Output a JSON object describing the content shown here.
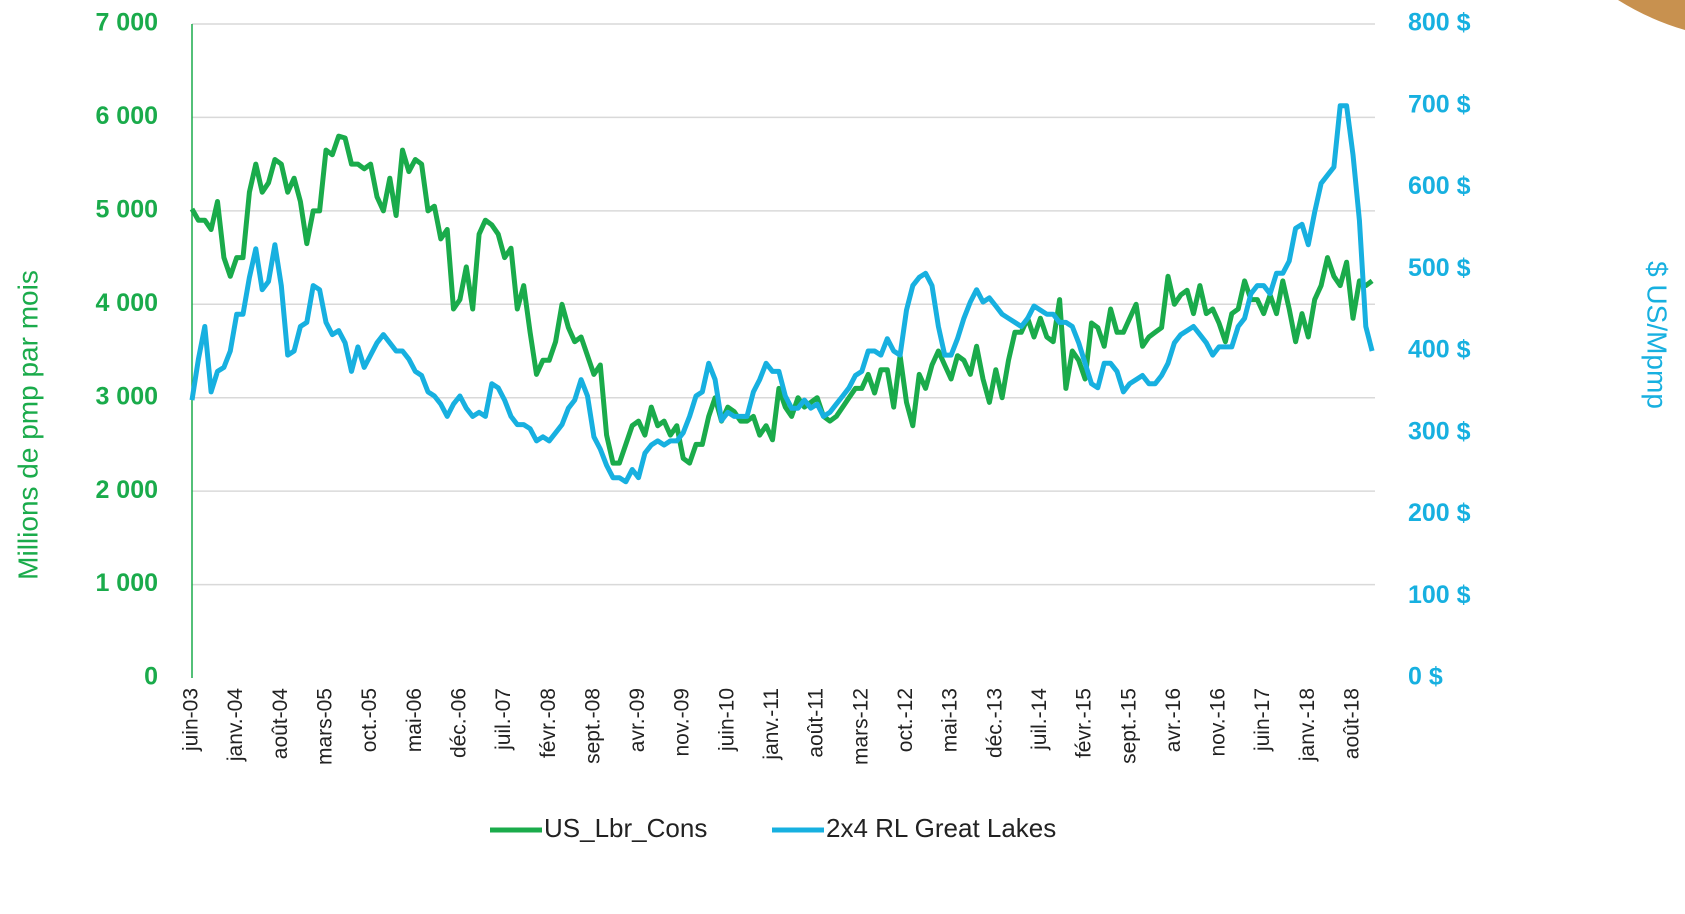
{
  "chart_data": {
    "type": "line",
    "y_label": "Millions de pmp par mois",
    "y2_label": "$ US/Mpmp",
    "categories": [
      "juin-03",
      null,
      null,
      null,
      null,
      null,
      null,
      "janv.-04",
      null,
      null,
      null,
      null,
      null,
      null,
      "août-04",
      null,
      null,
      null,
      null,
      null,
      null,
      "mars-05",
      null,
      null,
      null,
      null,
      null,
      null,
      "oct.-05",
      null,
      null,
      null,
      null,
      null,
      null,
      "mai-06",
      null,
      null,
      null,
      null,
      null,
      null,
      "déc.-06",
      null,
      null,
      null,
      null,
      null,
      null,
      "juil.-07",
      null,
      null,
      null,
      null,
      null,
      null,
      "févr.-08",
      null,
      null,
      null,
      null,
      null,
      null,
      "sept.-08",
      null,
      null,
      null,
      null,
      null,
      null,
      "avr.-09",
      null,
      null,
      null,
      null,
      null,
      null,
      "nov.-09",
      null,
      null,
      null,
      null,
      null,
      null,
      "juin-10",
      null,
      null,
      null,
      null,
      null,
      null,
      "janv.-11",
      null,
      null,
      null,
      null,
      null,
      null,
      "août-11",
      null,
      null,
      null,
      null,
      null,
      null,
      "mars-12",
      null,
      null,
      null,
      null,
      null,
      null,
      "oct.-12",
      null,
      null,
      null,
      null,
      null,
      null,
      "mai-13",
      null,
      null,
      null,
      null,
      null,
      null,
      "déc.-13",
      null,
      null,
      null,
      null,
      null,
      null,
      "juil.-14",
      null,
      null,
      null,
      null,
      null,
      null,
      "févr.-15",
      null,
      null,
      null,
      null,
      null,
      null,
      "sept.-15",
      null,
      null,
      null,
      null,
      null,
      null,
      "avr.-16",
      null,
      null,
      null,
      null,
      null,
      null,
      "nov.-16",
      null,
      null,
      null,
      null,
      null,
      null,
      "juin-17",
      null,
      null,
      null,
      null,
      null,
      null,
      "janv.-18",
      null,
      null,
      null,
      null,
      null,
      null,
      "août-18",
      null,
      null,
      null
    ],
    "series": [
      {
        "name": "US_Lbr_Cons",
        "color": "#1aab4b",
        "axis": "y",
        "values": [
          5020,
          4900,
          4900,
          4800,
          5100,
          4500,
          4300,
          4500,
          4500,
          5200,
          5500,
          5200,
          5300,
          5550,
          5500,
          5200,
          5350,
          5100,
          4650,
          5000,
          5000,
          5650,
          5600,
          5800,
          5780,
          5500,
          5500,
          5450,
          5500,
          5150,
          5000,
          5350,
          4950,
          5650,
          5420,
          5550,
          5500,
          5000,
          5050,
          4700,
          4800,
          3950,
          4050,
          4400,
          3950,
          4750,
          4900,
          4850,
          4750,
          4500,
          4600,
          3950,
          4200,
          3700,
          3250,
          3400,
          3400,
          3600,
          4000,
          3750,
          3600,
          3650,
          3450,
          3250,
          3350,
          2600,
          2300,
          2300,
          2500,
          2700,
          2750,
          2600,
          2900,
          2700,
          2750,
          2600,
          2700,
          2350,
          2300,
          2500,
          2500,
          2800,
          3000,
          2750,
          2900,
          2850,
          2750,
          2750,
          2800,
          2600,
          2700,
          2550,
          3100,
          2900,
          2800,
          3000,
          2900,
          2950,
          3000,
          2800,
          2750,
          2800,
          2900,
          3000,
          3100,
          3100,
          3250,
          3050,
          3300,
          3300,
          2900,
          3450,
          2950,
          2700,
          3250,
          3100,
          3350,
          3500,
          3350,
          3200,
          3450,
          3400,
          3250,
          3550,
          3200,
          2950,
          3300,
          3000,
          3400,
          3700,
          3700,
          3850,
          3650,
          3850,
          3650,
          3600,
          4050,
          3100,
          3500,
          3400,
          3200,
          3800,
          3750,
          3550,
          3950,
          3700,
          3700,
          3850,
          4000,
          3550,
          3650,
          3700,
          3750,
          4300,
          4000,
          4100,
          4150,
          3900,
          4200,
          3900,
          3950,
          3800,
          3600,
          3900,
          3950,
          4250,
          4050,
          4050,
          3900,
          4100,
          3900,
          4250,
          3950,
          3600,
          3900,
          3650,
          4050,
          4200,
          4500,
          4300,
          4200,
          4450,
          3850,
          4250,
          4200,
          4250
        ]
      },
      {
        "name": "2x4 RL Great Lakes",
        "color": "#17b0e0",
        "axis": "y2",
        "values": [
          340,
          390,
          430,
          350,
          375,
          380,
          400,
          445,
          445,
          490,
          525,
          475,
          485,
          530,
          480,
          395,
          400,
          430,
          435,
          480,
          475,
          435,
          420,
          425,
          410,
          375,
          405,
          380,
          395,
          410,
          420,
          410,
          400,
          400,
          390,
          375,
          370,
          350,
          345,
          335,
          320,
          335,
          345,
          330,
          320,
          325,
          320,
          360,
          355,
          340,
          320,
          310,
          310,
          305,
          290,
          295,
          290,
          300,
          310,
          330,
          340,
          365,
          345,
          295,
          280,
          260,
          245,
          245,
          240,
          255,
          245,
          275,
          285,
          290,
          285,
          290,
          290,
          300,
          320,
          345,
          350,
          385,
          365,
          315,
          325,
          320,
          320,
          320,
          350,
          365,
          385,
          375,
          375,
          345,
          330,
          330,
          340,
          330,
          335,
          320,
          325,
          335,
          345,
          355,
          370,
          375,
          400,
          400,
          395,
          415,
          400,
          395,
          450,
          480,
          490,
          495,
          480,
          430,
          395,
          395,
          415,
          440,
          460,
          475,
          460,
          465,
          455,
          445,
          440,
          435,
          430,
          440,
          455,
          450,
          445,
          445,
          435,
          435,
          430,
          410,
          385,
          360,
          355,
          385,
          385,
          375,
          350,
          360,
          365,
          370,
          360,
          360,
          370,
          385,
          410,
          420,
          425,
          430,
          420,
          410,
          395,
          405,
          405,
          405,
          430,
          440,
          470,
          480,
          480,
          470,
          495,
          495,
          510,
          550,
          555,
          530,
          570,
          605,
          615,
          625,
          700,
          700,
          640,
          560,
          430,
          400
        ]
      }
    ],
    "ylim": [
      0,
      7000
    ],
    "yticks": [
      0,
      {
        "value": 1000,
        "label": "1 000"
      },
      {
        "value": 2000,
        "label": "2 000"
      },
      {
        "value": 3000,
        "label": "3 000"
      },
      {
        "value": 4000,
        "label": "4 000"
      },
      {
        "value": 5000,
        "label": "5 000"
      },
      {
        "value": 6000,
        "label": "6 000"
      },
      {
        "value": 7000,
        "label": "7 000"
      }
    ],
    "y2lim": [
      0,
      800
    ],
    "y2ticks": [
      {
        "value": 0,
        "label": "0 $"
      },
      {
        "value": 100,
        "label": "100 $"
      },
      {
        "value": 200,
        "label": "200 $"
      },
      {
        "value": 300,
        "label": "300 $"
      },
      {
        "value": 400,
        "label": "400 $"
      },
      {
        "value": 500,
        "label": "500 $"
      },
      {
        "value": 600,
        "label": "600 $"
      },
      {
        "value": 700,
        "label": "700 $"
      },
      {
        "value": 800,
        "label": "800 $"
      }
    ],
    "grid": true,
    "legend": "bottom"
  }
}
